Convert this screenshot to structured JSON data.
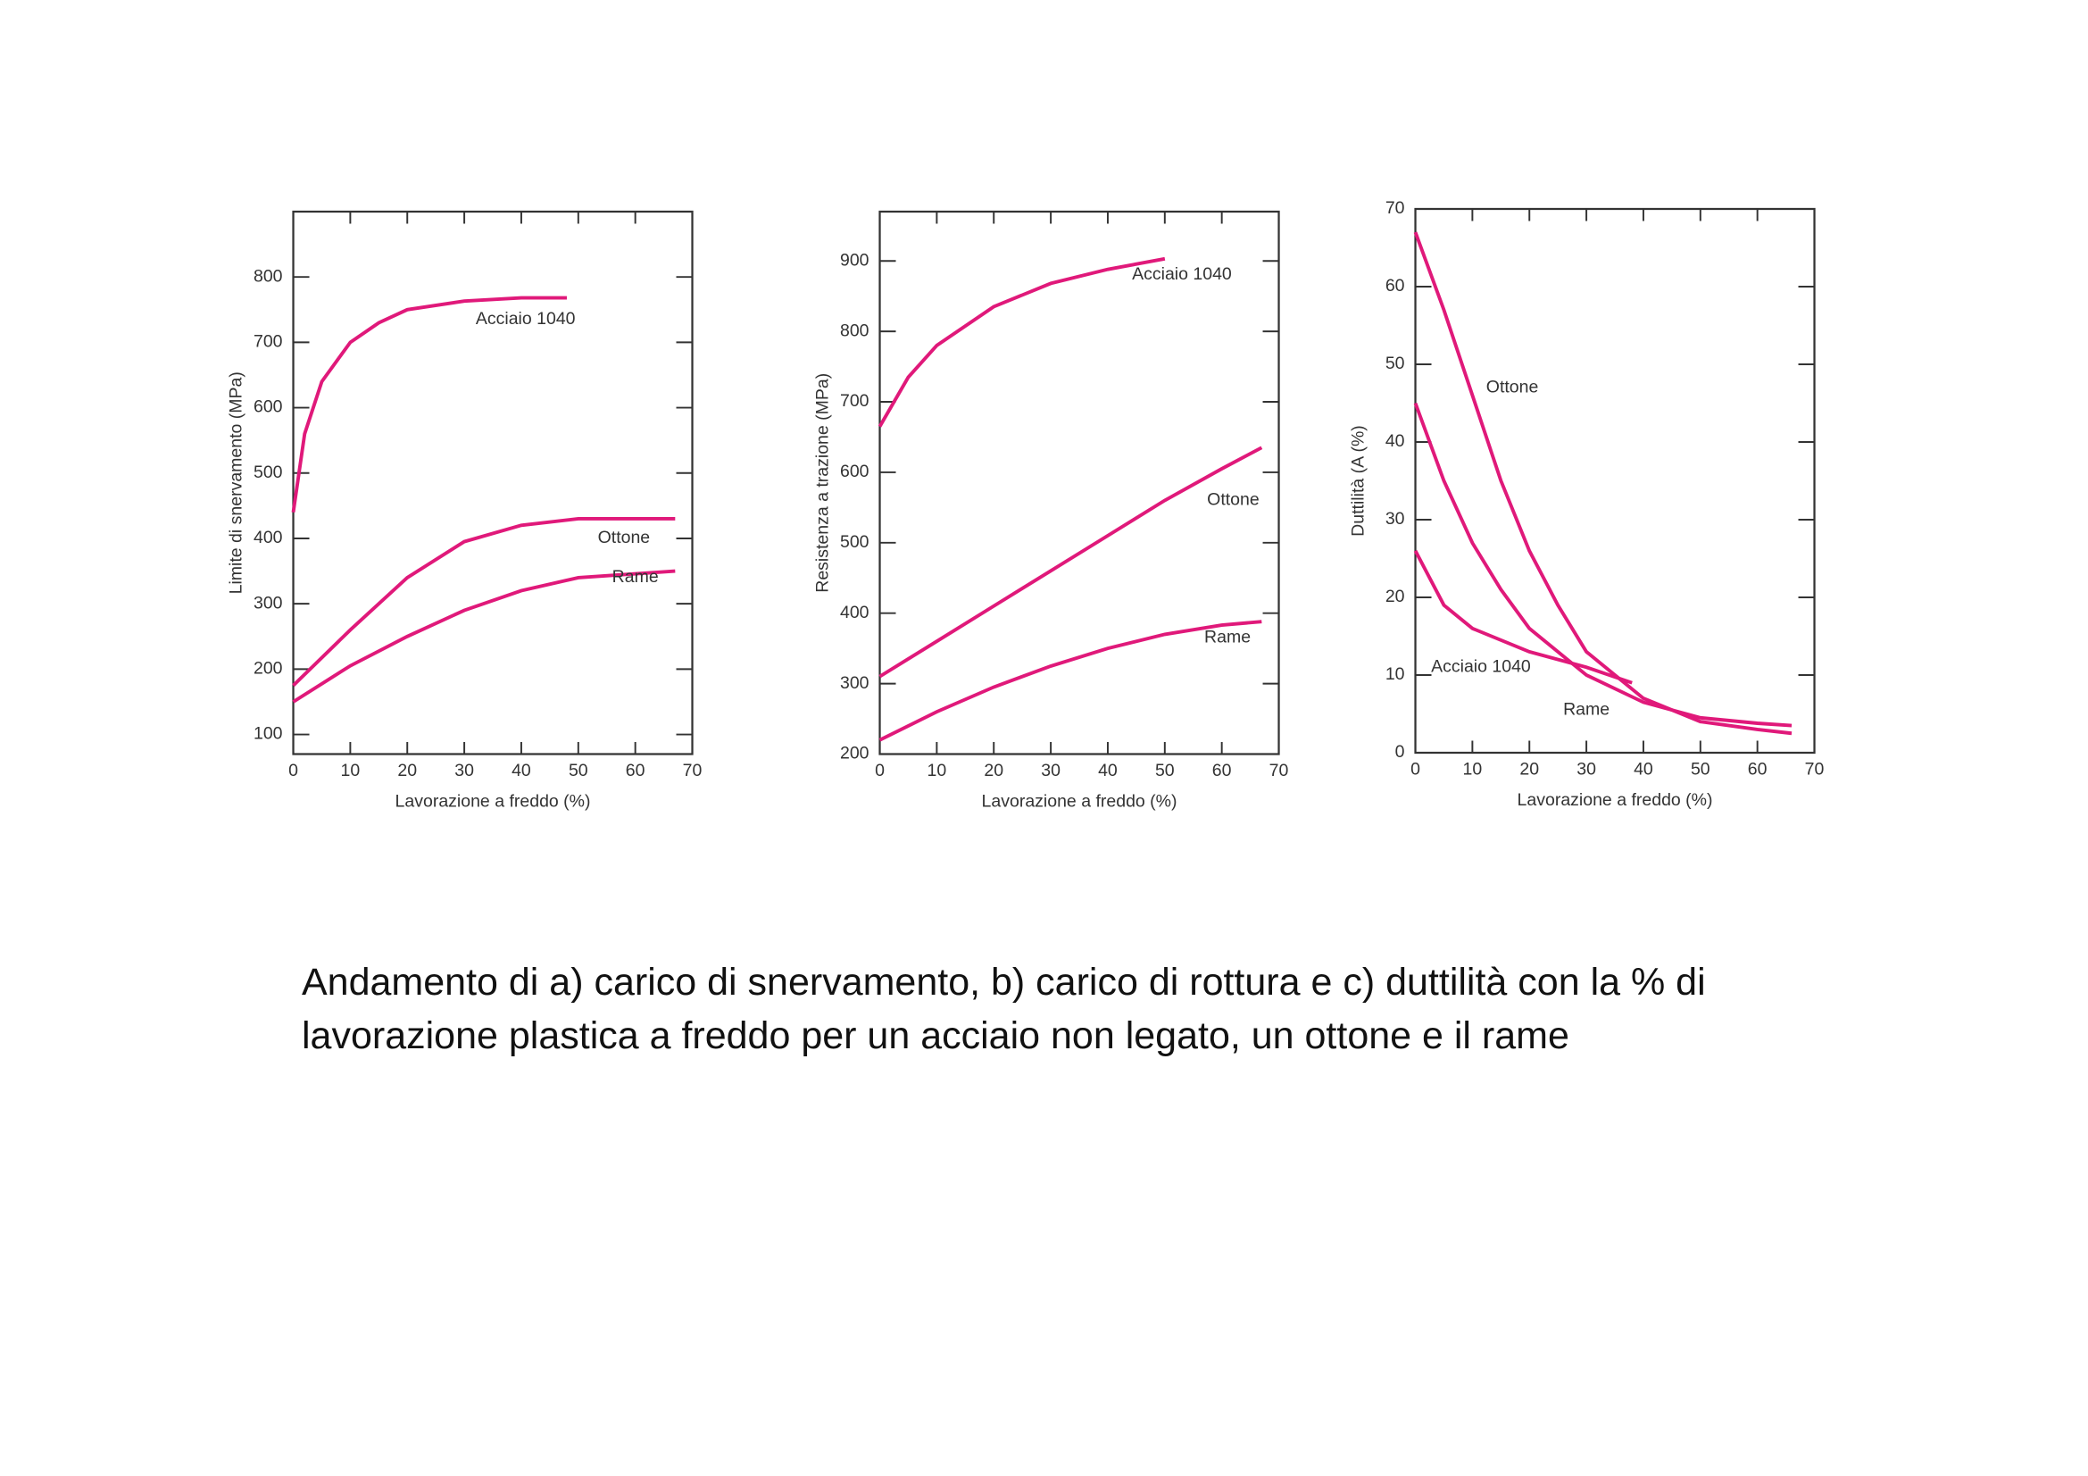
{
  "chart_data": [
    {
      "type": "line",
      "x_label": "Lavorazione a freddo (%)",
      "y_label": "Limite di snervamento (MPa)",
      "xlim": [
        0,
        70
      ],
      "xticks": [
        0,
        10,
        20,
        30,
        40,
        50,
        60,
        70
      ],
      "ylim": [
        70,
        900
      ],
      "yticks": [
        100,
        200,
        300,
        400,
        500,
        600,
        700,
        800
      ],
      "series": [
        {
          "name": "Acciaio 1040",
          "color": "#e0197a",
          "x": [
            0,
            2,
            5,
            10,
            15,
            20,
            30,
            40,
            48
          ],
          "values": [
            440,
            560,
            640,
            700,
            730,
            750,
            763,
            768,
            768
          ]
        },
        {
          "name": "Ottone",
          "color": "#e0197a",
          "x": [
            0,
            10,
            20,
            30,
            40,
            50,
            67
          ],
          "values": [
            175,
            260,
            340,
            395,
            420,
            430,
            430
          ]
        },
        {
          "name": "Rame",
          "color": "#e0197a",
          "x": [
            0,
            10,
            20,
            30,
            40,
            50,
            67
          ],
          "values": [
            150,
            205,
            250,
            290,
            320,
            340,
            350
          ]
        }
      ]
    },
    {
      "type": "line",
      "x_label": "Lavorazione a freddo (%)",
      "y_label": "Resistenza a trazione (MPa)",
      "xlim": [
        0,
        70
      ],
      "xticks": [
        0,
        10,
        20,
        30,
        40,
        50,
        60,
        70
      ],
      "ylim": [
        200,
        970
      ],
      "yticks": [
        200,
        300,
        400,
        500,
        600,
        700,
        800,
        900
      ],
      "series": [
        {
          "name": "Acciaio 1040",
          "color": "#e0197a",
          "x": [
            0,
            5,
            10,
            20,
            30,
            40,
            50
          ],
          "values": [
            665,
            735,
            780,
            835,
            868,
            888,
            903
          ]
        },
        {
          "name": "Ottone",
          "color": "#e0197a",
          "x": [
            0,
            10,
            20,
            30,
            40,
            50,
            60,
            67
          ],
          "values": [
            310,
            360,
            410,
            460,
            510,
            560,
            605,
            635
          ]
        },
        {
          "name": "Rame",
          "color": "#e0197a",
          "x": [
            0,
            10,
            20,
            30,
            40,
            50,
            60,
            67
          ],
          "values": [
            220,
            260,
            295,
            325,
            350,
            370,
            383,
            388
          ]
        }
      ]
    },
    {
      "type": "line",
      "x_label": "Lavorazione a freddo (%)",
      "y_label": "Duttilità (A (%)",
      "xlim": [
        0,
        70
      ],
      "xticks": [
        0,
        10,
        20,
        30,
        40,
        50,
        60,
        70
      ],
      "ylim": [
        0,
        70
      ],
      "yticks": [
        0,
        10,
        20,
        30,
        40,
        50,
        60,
        70
      ],
      "series": [
        {
          "name": "Ottone",
          "color": "#e0197a",
          "x": [
            0,
            5,
            10,
            15,
            20,
            25,
            30,
            40,
            50,
            60,
            66
          ],
          "values": [
            67,
            57,
            46,
            35,
            26,
            19,
            13,
            7,
            4,
            3,
            2.5
          ]
        },
        {
          "name": "Rame",
          "color": "#e0197a",
          "x": [
            0,
            5,
            10,
            15,
            20,
            30,
            40,
            50,
            60,
            66
          ],
          "values": [
            45,
            35,
            27,
            21,
            16,
            10,
            6.5,
            4.5,
            3.8,
            3.5
          ]
        },
        {
          "name": "Acciaio 1040",
          "color": "#e0197a",
          "x": [
            0,
            5,
            10,
            20,
            30,
            38
          ],
          "values": [
            26,
            19,
            16,
            13,
            11,
            9
          ]
        }
      ]
    }
  ],
  "caption": "Andamento di a) carico di snervamento, b) carico di rottura e c) duttilità con la % di lavorazione plastica a freddo per un acciaio non legato, un ottone e il rame"
}
